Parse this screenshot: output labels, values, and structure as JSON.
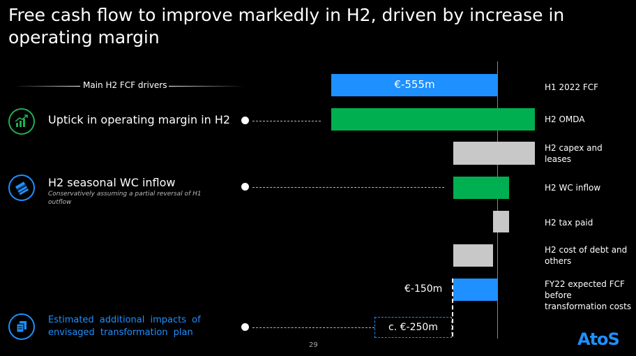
{
  "title": "Free cash flow to improve markedly in H2, driven by increase in operating margin",
  "drivers_header": "Main H2 FCF drivers",
  "drivers": [
    {
      "title": "Uptick in operating margin in H2",
      "subtitle": "",
      "icon": "growth-chart-icon"
    },
    {
      "title": "H2 seasonal WC inflow",
      "subtitle": "Conservatively assuming a partial reversal of H1 outflow",
      "icon": "cash-stack-icon"
    },
    {
      "title": "Estimated additional impacts of envisaged transformation plan",
      "subtitle": "",
      "icon": "documents-icon"
    }
  ],
  "waterfall": {
    "bars": [
      {
        "label": "H1 2022 FCF",
        "value_label": "€-555m",
        "color": "#1e90ff"
      },
      {
        "label": "H2 OMDA",
        "value_label": "",
        "color": "#00b050"
      },
      {
        "label": "H2 capex and leases",
        "value_label": "",
        "color": "#c8c8c8"
      },
      {
        "label": "H2 WC inflow",
        "value_label": "",
        "color": "#00b050"
      },
      {
        "label": "H2 tax paid",
        "value_label": "",
        "color": "#c8c8c8"
      },
      {
        "label": "H2 cost of debt and others",
        "value_label": "",
        "color": "#c8c8c8"
      },
      {
        "label": "FY22 expected FCF before transformation costs",
        "value_label": "€-150m",
        "color": "#1e90ff"
      }
    ],
    "transformation_box": "c. €-250m"
  },
  "page_number": "29",
  "logo": "AtoS"
}
